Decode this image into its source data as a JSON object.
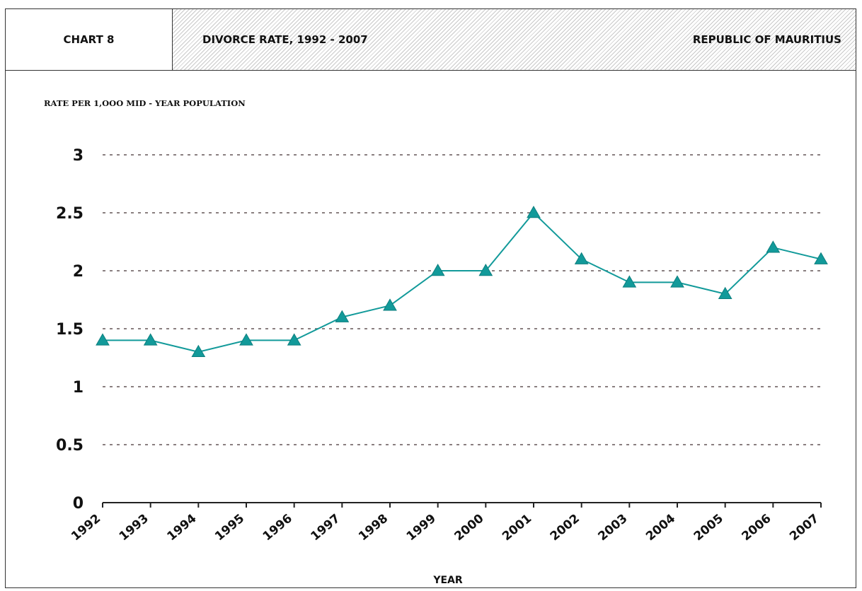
{
  "header": {
    "chart_number": "CHART  8",
    "title": "DIVORCE RATE, 1992 - 2007",
    "region": "REPUBLIC OF MAURITIUS"
  },
  "colors": {
    "series": "#129a9a",
    "grid": "#8a7f80",
    "axis": "#222222"
  },
  "chart_data": {
    "type": "line",
    "title": "DIVORCE RATE, 1992 - 2007",
    "ylabel": "RATE  PER 1,OOO  MID - YEAR  POPULATION",
    "xlabel": "YEAR",
    "categories": [
      "1992",
      "1993",
      "1994",
      "1995",
      "1996",
      "1997",
      "1998",
      "1999",
      "2000",
      "2001",
      "2002",
      "2003",
      "2004",
      "2005",
      "2006",
      "2007"
    ],
    "series": [
      {
        "name": "",
        "marker": "triangle",
        "values": [
          1.4,
          1.4,
          1.3,
          1.4,
          1.4,
          1.6,
          1.7,
          2.0,
          2.0,
          2.5,
          2.1,
          1.9,
          1.9,
          1.8,
          2.2,
          2.1
        ]
      }
    ],
    "ylim": [
      0,
      3
    ],
    "yticks": [
      0,
      0.5,
      1,
      1.5,
      2,
      2.5,
      3
    ],
    "ytick_labels": [
      "0",
      "0.5",
      "1",
      "1.5",
      "2",
      "2.5",
      "3"
    ],
    "grid": "horizontal dotted"
  }
}
